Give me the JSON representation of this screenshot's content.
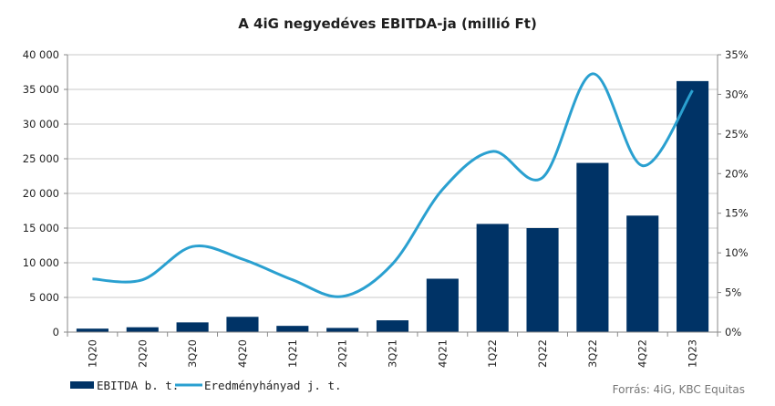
{
  "chart_data": {
    "type": "bar",
    "title": "A 4iG negyedéves EBITDA-ja (millió Ft)",
    "categories": [
      "1Q20",
      "2Q20",
      "3Q20",
      "4Q20",
      "1Q21",
      "2Q21",
      "3Q21",
      "4Q21",
      "1Q22",
      "2Q22",
      "3Q22",
      "4Q22",
      "1Q23"
    ],
    "series": [
      {
        "name": "EBITDA b. t.",
        "type": "bar",
        "axis": "left",
        "color": "#003366",
        "values": [
          500,
          700,
          1400,
          2200,
          900,
          600,
          1700,
          7700,
          15600,
          15000,
          24400,
          16800,
          36200
        ]
      },
      {
        "name": "Eredményhányad j. t.",
        "type": "line",
        "axis": "right",
        "smooth": true,
        "color": "#2aa0d0",
        "values": [
          0.067,
          0.066,
          0.108,
          0.092,
          0.066,
          0.045,
          0.086,
          0.18,
          0.228,
          0.195,
          0.326,
          0.21,
          0.305
        ]
      }
    ],
    "y_left": {
      "lim": [
        0,
        40000
      ],
      "ticks": [
        0,
        5000,
        10000,
        15000,
        20000,
        25000,
        30000,
        35000,
        40000
      ],
      "tick_labels": [
        "0",
        "5 000",
        "10 000",
        "15 000",
        "20 000",
        "25 000",
        "30 000",
        "35 000",
        "40 000"
      ]
    },
    "y_right": {
      "lim": [
        0,
        0.35
      ],
      "ticks": [
        0,
        0.05,
        0.1,
        0.15,
        0.2,
        0.25,
        0.3,
        0.35
      ],
      "tick_labels": [
        "0%",
        "5%",
        "10%",
        "15%",
        "20%",
        "25%",
        "30%",
        "35%"
      ]
    },
    "grid": true,
    "legend": "bottom-left",
    "source": "Forrás: 4iG, KBC Equitas"
  }
}
